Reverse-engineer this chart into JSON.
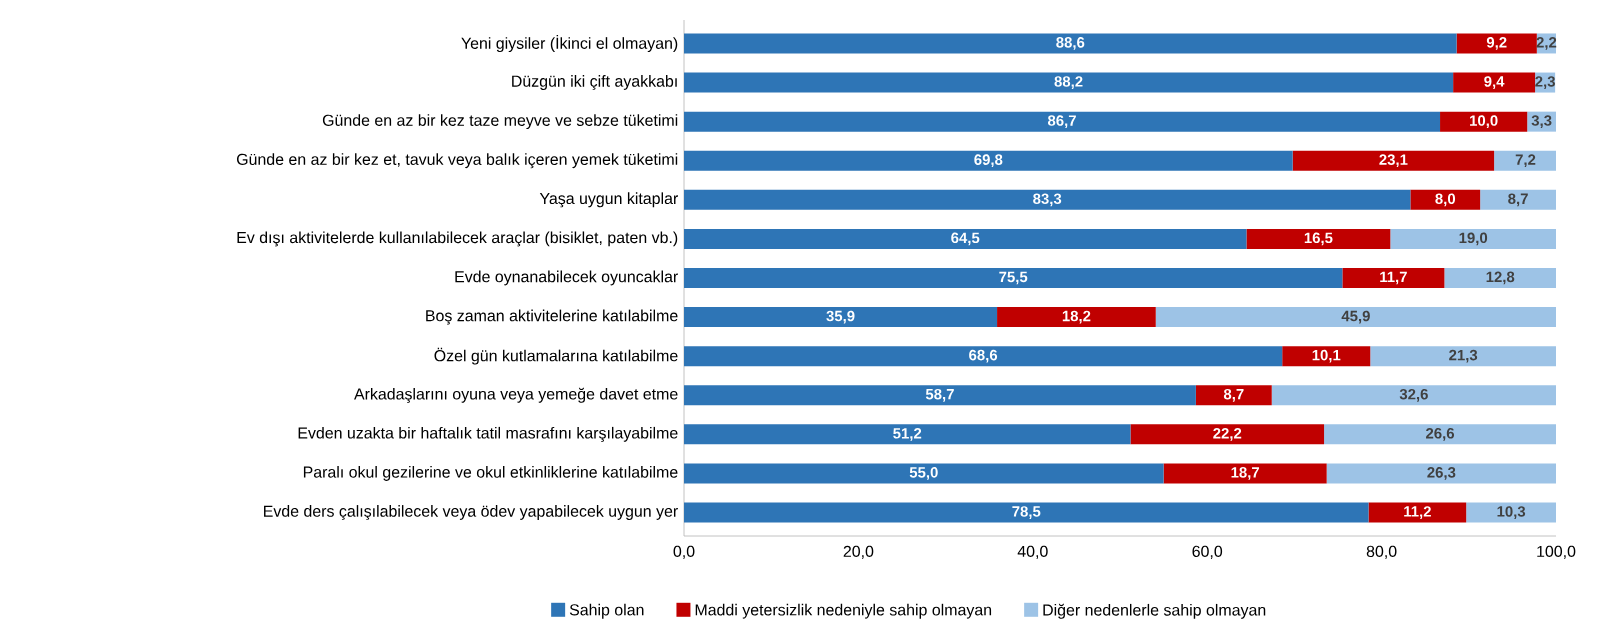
{
  "chart_data": {
    "type": "bar",
    "orientation": "horizontal",
    "stacked": true,
    "legend": "bottom",
    "categories": [
      "Yeni giysiler (İkinci el olmayan)",
      "Düzgün iki çift ayakkabı",
      "Günde en az bir kez taze meyve ve sebze tüketimi",
      "Günde en az bir kez et, tavuk veya balık içeren yemek tüketimi",
      "Yaşa uygun kitaplar",
      "Ev dışı aktivitelerde kullanılabilecek araçlar (bisiklet, paten vb.)",
      "Evde oynanabilecek oyuncaklar",
      "Boş zaman aktivitelerine katılabilme",
      "Özel gün kutlamalarına katılabilme",
      "Arkadaşlarını oyuna veya yemeğe davet etme",
      "Evden uzakta bir haftalık tatil masrafını karşılayabilme",
      "Paralı okul gezilerine ve okul etkinliklerine katılabilme",
      "Evde ders çalışılabilecek veya ödev yapabilecek uygun yer"
    ],
    "series": [
      {
        "name": "Sahip olan",
        "color": "#2e75b6",
        "values": [
          88.6,
          88.2,
          86.7,
          69.8,
          83.3,
          64.5,
          75.5,
          35.9,
          68.6,
          58.7,
          51.2,
          55.0,
          78.5
        ],
        "value_labels": [
          "88,6",
          "88,2",
          "86,7",
          "69,8",
          "83,3",
          "64,5",
          "75,5",
          "35,9",
          "68,6",
          "58,7",
          "51,2",
          "55,0",
          "78,5"
        ]
      },
      {
        "name": "Maddi yetersizlik nedeniyle sahip olmayan",
        "color": "#c00000",
        "values": [
          9.2,
          9.4,
          10.0,
          23.1,
          8.0,
          16.5,
          11.7,
          18.2,
          10.1,
          8.7,
          22.2,
          18.7,
          11.2
        ],
        "value_labels": [
          "9,2",
          "9,4",
          "10,0",
          "23,1",
          "8,0",
          "16,5",
          "11,7",
          "18,2",
          "10,1",
          "8,7",
          "22,2",
          "18,7",
          "11,2"
        ]
      },
      {
        "name": "Diğer nedenlerle sahip olmayan",
        "color": "#9dc3e6",
        "values": [
          2.2,
          2.3,
          3.3,
          7.2,
          8.7,
          19.0,
          12.8,
          45.9,
          21.3,
          32.6,
          26.6,
          26.3,
          10.3
        ],
        "value_labels": [
          "2,2",
          "2,3",
          "3,3",
          "7,2",
          "8,7",
          "19,0",
          "12,8",
          "45,9",
          "21,3",
          "32,6",
          "26,6",
          "26,3",
          "10,3"
        ]
      }
    ],
    "xlim": [
      0,
      100
    ],
    "xticks": [
      {
        "value": 0,
        "label": "0,0"
      },
      {
        "value": 20,
        "label": "20,0"
      },
      {
        "value": 40,
        "label": "40,0"
      },
      {
        "value": 60,
        "label": "60,0"
      },
      {
        "value": 80,
        "label": "80,0"
      },
      {
        "value": 100,
        "label": "100,0"
      }
    ]
  }
}
